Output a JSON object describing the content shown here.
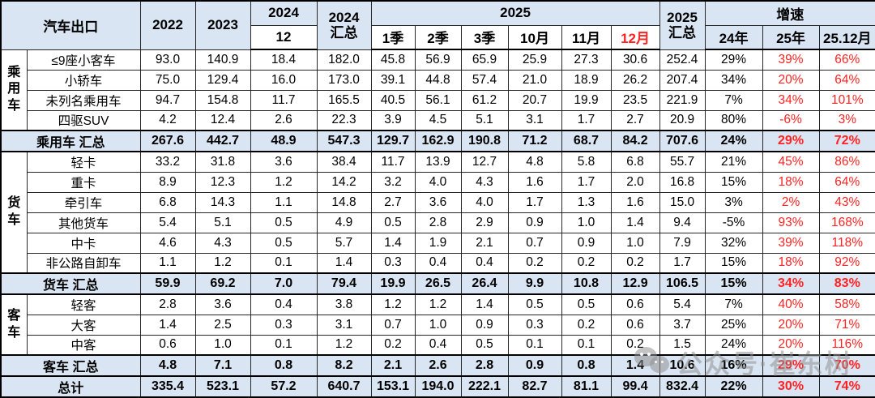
{
  "colors": {
    "header_bg": "#d9e5f2",
    "summary_bg": "#d9e5f2",
    "red": "#ff2222"
  },
  "table": {
    "header": {
      "corner": "汽车出口",
      "y2022": "2022",
      "y2023": "2023",
      "y2024": "2024",
      "m12": "12",
      "y2024_total": "2024\n汇总",
      "y2025": "2025",
      "sub_2025": [
        "1季",
        "2季",
        "3季",
        "10月",
        "11月",
        "12月"
      ],
      "y2025_total": "2025\n汇总",
      "growth": "增速",
      "growth_cols": [
        "24年",
        "25年",
        "25.12月"
      ]
    },
    "groups": [
      {
        "label": "乘\n用\n车",
        "rows": [
          {
            "name": "≤9座小客车",
            "values": [
              "93.0",
              "140.9",
              "18.4",
              "182.0",
              "45.8",
              "56.9",
              "65.9",
              "25.9",
              "27.3",
              "30.6",
              "252.4",
              "29%",
              "39%",
              "66%"
            ]
          },
          {
            "name": "小轿车",
            "values": [
              "75.0",
              "129.4",
              "16.0",
              "173.0",
              "39.1",
              "44.8",
              "57.4",
              "21.0",
              "18.9",
              "26.2",
              "207.4",
              "34%",
              "20%",
              "64%"
            ]
          },
          {
            "name": "未列名乘用车",
            "values": [
              "94.7",
              "154.8",
              "11.7",
              "165.5",
              "40.5",
              "56.1",
              "61.2",
              "20.7",
              "19.9",
              "23.5",
              "221.9",
              "7%",
              "34%",
              "101%"
            ]
          },
          {
            "name": "四驱SUV",
            "values": [
              "4.2",
              "12.4",
              "2.6",
              "22.3",
              "3.9",
              "4.5",
              "5.1",
              "3.1",
              "1.7",
              "2.7",
              "20.9",
              "80%",
              "-6%",
              "3%"
            ]
          }
        ],
        "summary": {
          "name": "乘用车 汇总",
          "values": [
            "267.6",
            "442.7",
            "48.9",
            "547.3",
            "129.7",
            "162.9",
            "190.8",
            "71.2",
            "68.7",
            "84.2",
            "707.6",
            "24%",
            "29%",
            "72%"
          ]
        }
      },
      {
        "label": "货\n车",
        "rows": [
          {
            "name": "轻卡",
            "values": [
              "33.2",
              "31.8",
              "3.6",
              "38.4",
              "11.7",
              "13.9",
              "12.7",
              "4.8",
              "5.8",
              "6.8",
              "55.7",
              "21%",
              "45%",
              "86%"
            ]
          },
          {
            "name": "重卡",
            "values": [
              "8.9",
              "12.3",
              "1.2",
              "14.2",
              "3.2",
              "4.0",
              "4.3",
              "1.6",
              "1.7",
              "2.0",
              "16.8",
              "15%",
              "18%",
              "64%"
            ]
          },
          {
            "name": "牵引车",
            "values": [
              "6.8",
              "14.3",
              "1.1",
              "14.8",
              "2.7",
              "3.6",
              "4.0",
              "1.7",
              "1.3",
              "1.6",
              "15.0",
              "3%",
              "2%",
              "43%"
            ]
          },
          {
            "name": "其他货车",
            "values": [
              "5.4",
              "5.1",
              "0.5",
              "4.9",
              "0.5",
              "2.8",
              "2.9",
              "0.9",
              "1.0",
              "1.4",
              "9.4",
              "-5%",
              "93%",
              "168%"
            ]
          },
          {
            "name": "中卡",
            "values": [
              "4.6",
              "4.3",
              "0.5",
              "5.7",
              "1.4",
              "1.9",
              "2.1",
              "0.7",
              "0.9",
              "1.0",
              "7.9",
              "32%",
              "39%",
              "118%"
            ]
          },
          {
            "name": "非公路自卸车",
            "values": [
              "1.1",
              "1.2",
              "0.1",
              "1.4",
              "0.3",
              "0.4",
              "0.4",
              "0.2",
              "0.2",
              "0.2",
              "1.7",
              "15%",
              "18%",
              "92%"
            ]
          }
        ],
        "summary": {
          "name": "货车 汇总",
          "values": [
            "59.9",
            "69.2",
            "7.0",
            "79.4",
            "19.9",
            "26.5",
            "26.4",
            "9.9",
            "10.8",
            "12.9",
            "106.5",
            "15%",
            "34%",
            "83%"
          ]
        }
      },
      {
        "label": "客\n车",
        "rows": [
          {
            "name": "轻客",
            "values": [
              "2.8",
              "3.6",
              "0.4",
              "3.8",
              "1.2",
              "1.2",
              "1.4",
              "0.5",
              "0.5",
              "0.6",
              "5.4",
              "7%",
              "40%",
              "58%"
            ]
          },
          {
            "name": "大客",
            "values": [
              "1.4",
              "2.5",
              "0.3",
              "3.1",
              "0.7",
              "1.0",
              "0.9",
              "0.3",
              "0.2",
              "0.6",
              "3.7",
              "25%",
              "20%",
              "71%"
            ]
          },
          {
            "name": "中客",
            "values": [
              "0.6",
              "1.0",
              "0.1",
              "1.2",
              "0.2",
              "0.4",
              "0.5",
              "0.1",
              "0.1",
              "0.2",
              "1.5",
              "24%",
              "20%",
              "116%"
            ]
          }
        ],
        "summary": {
          "name": "客车 汇总",
          "values": [
            "4.8",
            "7.1",
            "0.8",
            "8.2",
            "2.1",
            "2.6",
            "2.8",
            "0.9",
            "0.8",
            "1.4",
            "10.6",
            "16%",
            "29%",
            "70%"
          ]
        }
      }
    ],
    "total": {
      "name": "总计",
      "values": [
        "335.4",
        "523.1",
        "57.2",
        "640.7",
        "153.1",
        "194.0",
        "222.1",
        "82.7",
        "81.1",
        "99.4",
        "832.4",
        "22%",
        "30%",
        "74%"
      ]
    }
  },
  "watermark": {
    "icon": "wechat-icon",
    "text": "公众号·崔东树"
  }
}
